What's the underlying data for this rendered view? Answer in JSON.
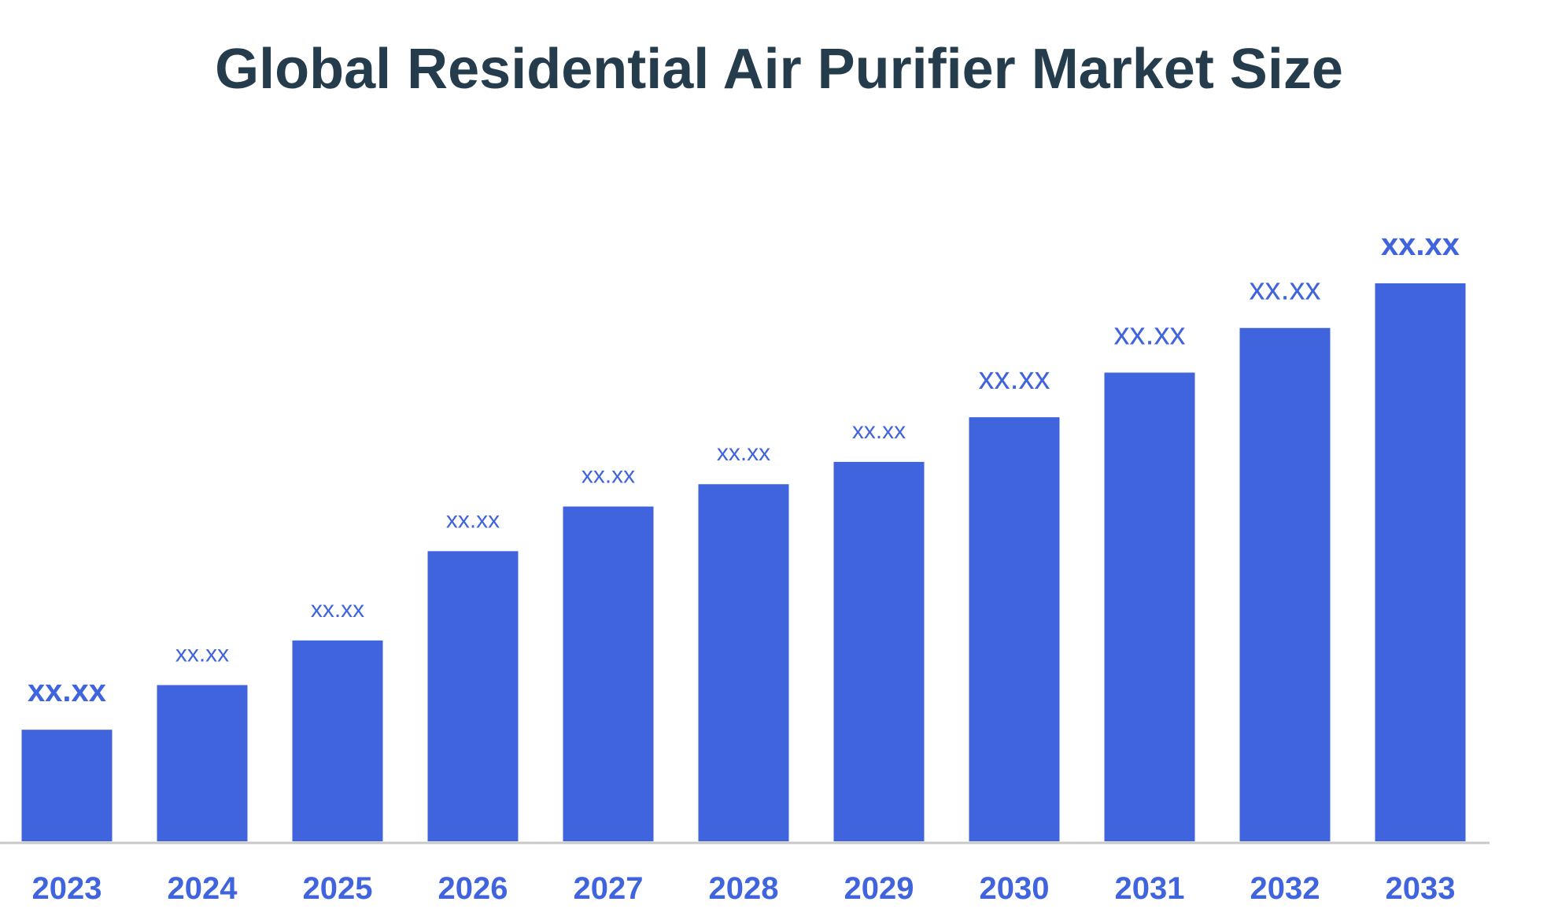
{
  "chart_data": {
    "type": "bar",
    "title": "Global Residential Air Purifier Market Size",
    "categories": [
      "2023",
      "2024",
      "2025",
      "2026",
      "2027",
      "2028",
      "2029",
      "2030",
      "2031",
      "2032",
      "2033"
    ],
    "values": [
      20,
      28,
      36,
      52,
      60,
      64,
      68,
      76,
      84,
      92,
      100
    ],
    "data_labels": [
      "xx.xx",
      "xx.xx",
      "xx.xx",
      "xx.xx",
      "xx.xx",
      "xx.xx",
      "xx.xx",
      "xx.xx",
      "xx.xx",
      "xx.xx",
      "xx.xx"
    ],
    "xlabel": "",
    "ylabel": "",
    "ylim": [
      0,
      100
    ],
    "grid": false,
    "legend": "none",
    "colors": {
      "bar": "#4064dd",
      "label": "#4064dd",
      "title": "#253c4c",
      "axis": "#c8c8c8"
    }
  }
}
